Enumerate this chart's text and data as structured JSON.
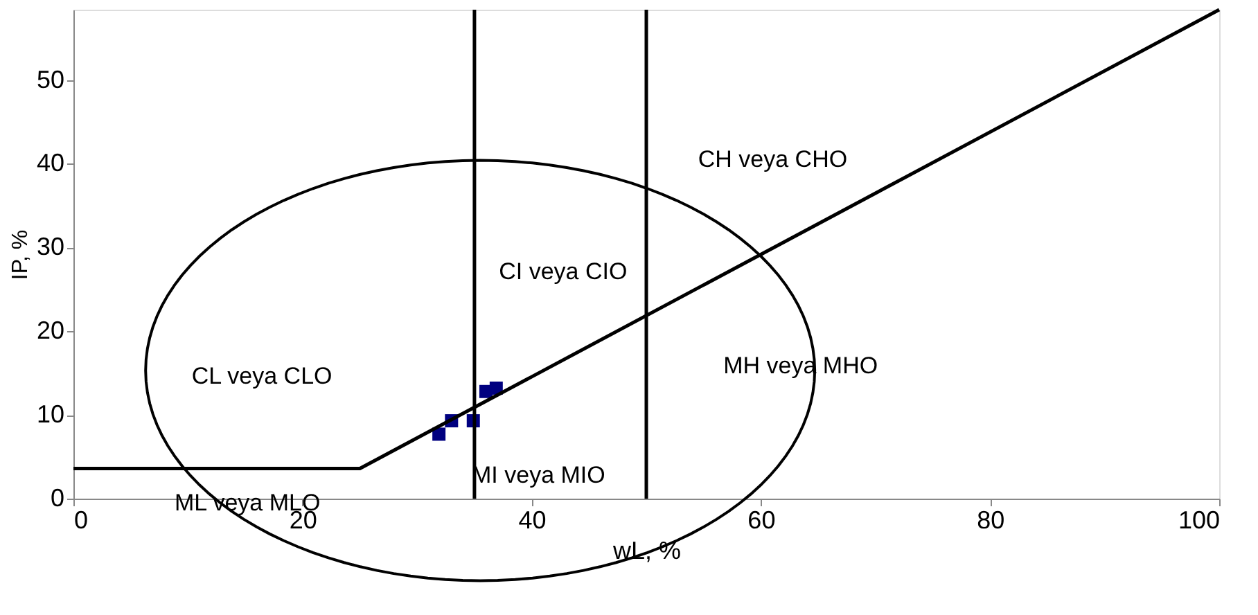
{
  "chart_data": {
    "type": "scatter",
    "xlabel": "wL, %",
    "ylabel": "IP, %",
    "xlim": [
      0,
      100
    ],
    "ylim": [
      0,
      58.4
    ],
    "xticks": [
      0,
      20,
      40,
      60,
      80,
      100
    ],
    "yticks": [
      0,
      10,
      20,
      30,
      40,
      50
    ],
    "grid": false,
    "series": [
      {
        "marker": "square",
        "color": "#000080",
        "x": [
          31.9,
          33.0,
          34.9,
          36.0,
          36.9
        ],
        "values": [
          7.7,
          9.3,
          9.3,
          12.8,
          13.2
        ]
      },
      {
        "type": "line",
        "marker": "none",
        "color": "#000000",
        "x": [
          0,
          25,
          100
        ],
        "values": [
          3.6,
          3.6,
          58.4
        ]
      }
    ],
    "ref_lines": [
      {
        "axis": "x",
        "value": 35,
        "color": "#000000"
      },
      {
        "axis": "x",
        "value": 50,
        "color": "#000000"
      }
    ],
    "annotations": [
      "CH veya CHO",
      "CI veya CIO",
      "CL veya CLO",
      "MH veya MHO",
      "MI veya MIO",
      "ML veya MLO"
    ]
  }
}
